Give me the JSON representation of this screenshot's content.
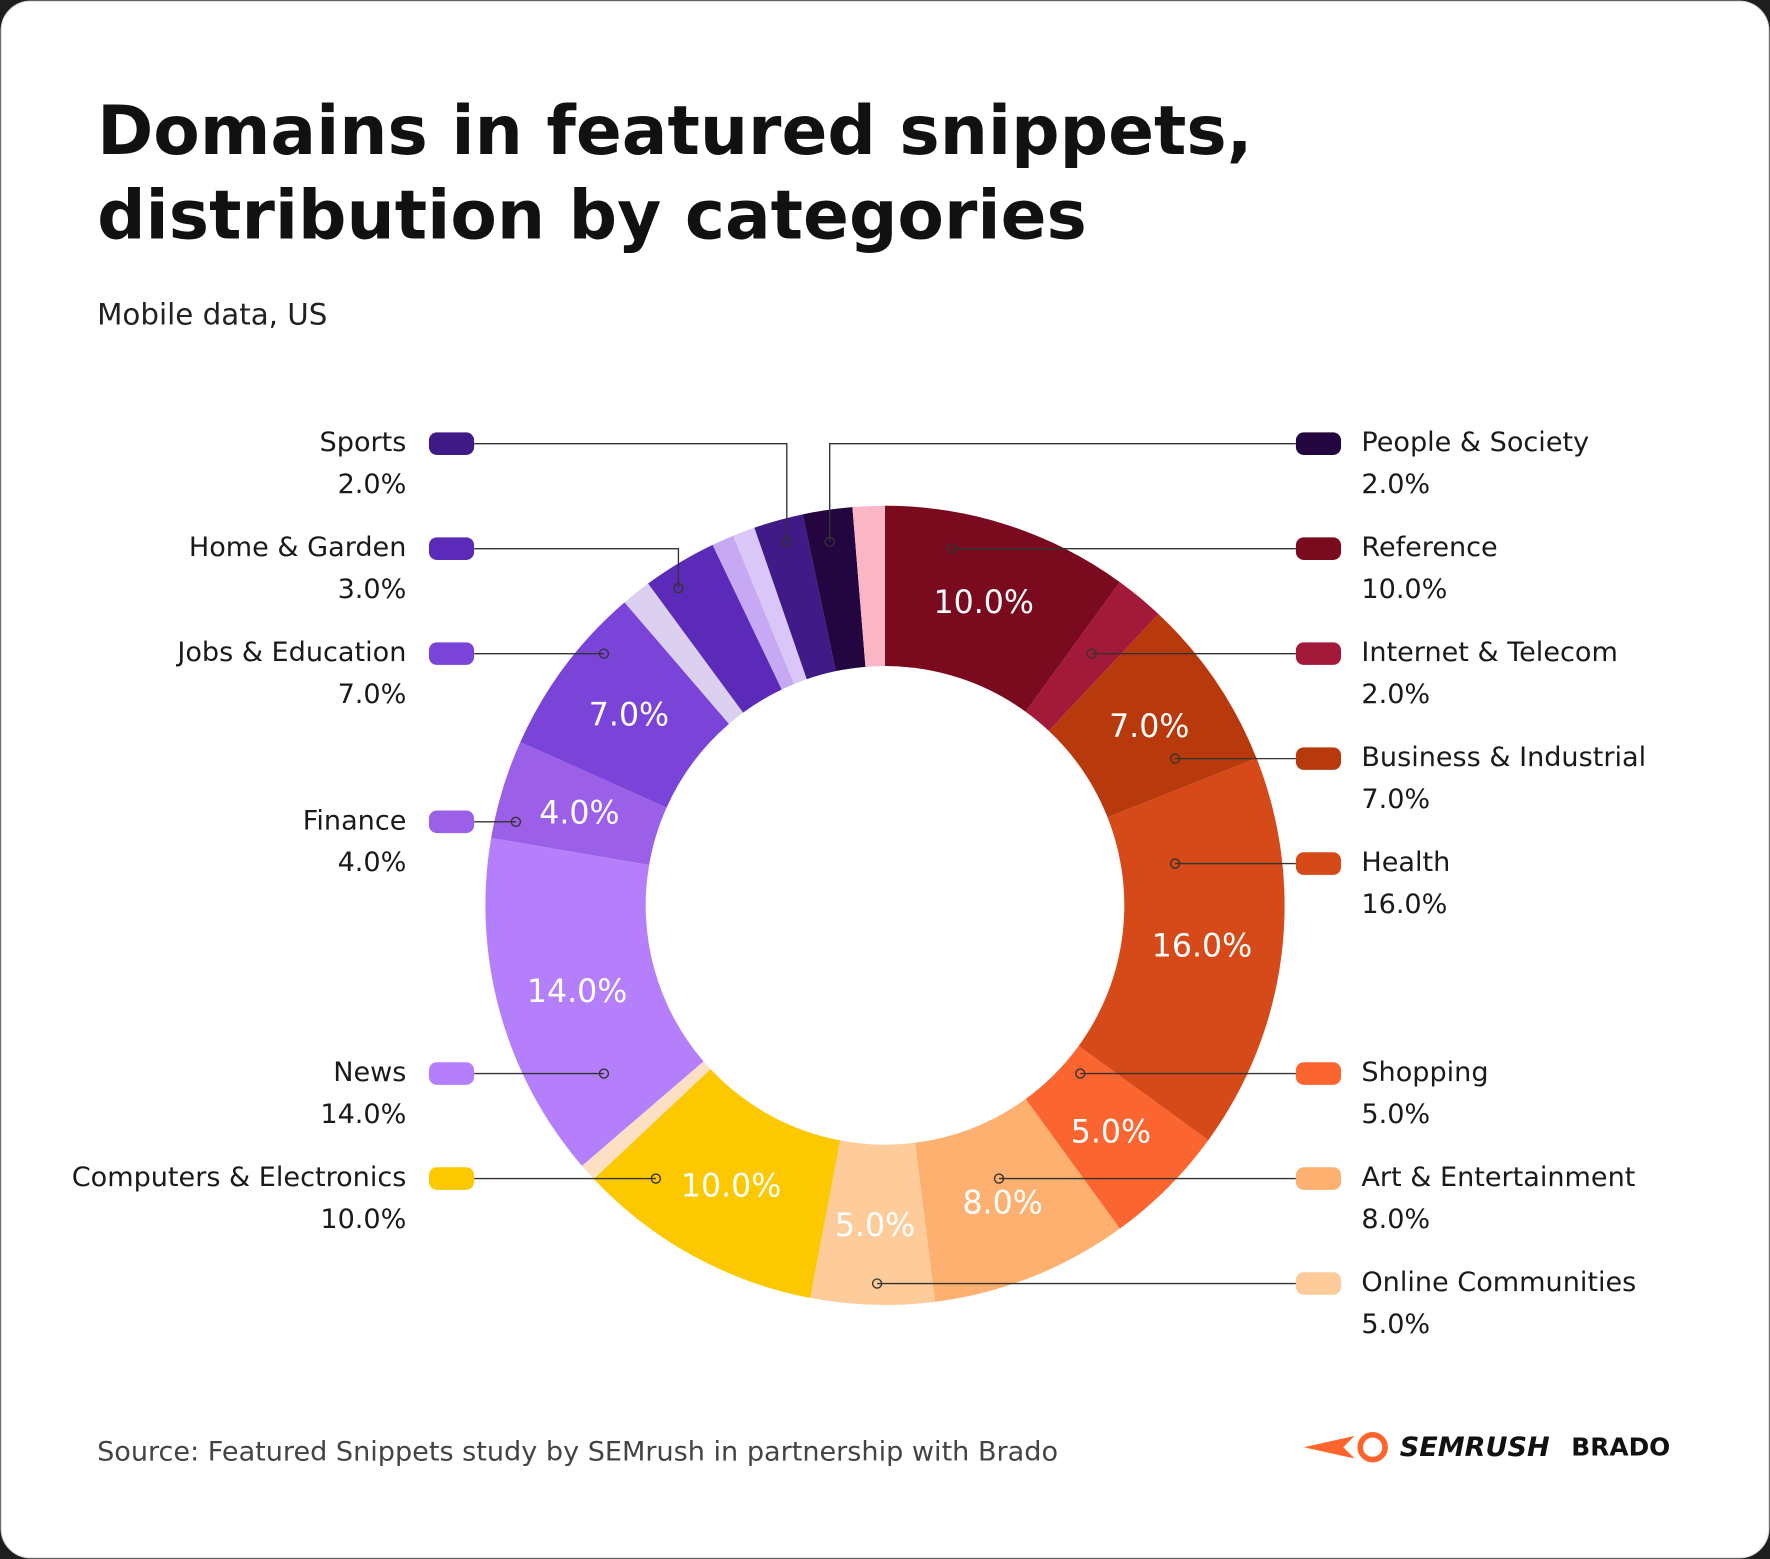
{
  "chart_data": {
    "type": "donut",
    "title": [
      "Domains in featured snippets,",
      "distribution by categories"
    ],
    "subtitle": "Mobile data, US",
    "categories": [
      "Reference",
      "Internet & Telecom",
      "Business & Industrial",
      "Health",
      "Shopping",
      "Art & Entertainment",
      "Online Communities",
      "Computers & Electronics",
      null,
      "News",
      "Finance",
      "Jobs & Education",
      null,
      "Home & Garden",
      null,
      null,
      "Sports",
      "People & Society",
      null
    ],
    "values": [
      10,
      2,
      7,
      16,
      5,
      8,
      5,
      10,
      0.7,
      14,
      4,
      7,
      1.2,
      3,
      0.9,
      0.9,
      2,
      2,
      1.3
    ],
    "value_labels": [
      "10.0%",
      "2.0%",
      "7.0%",
      "16.0%",
      "5.0%",
      "8.0%",
      "5.0%",
      "10.0%",
      null,
      "14.0%",
      "4.0%",
      "7.0%",
      null,
      "3.0%",
      null,
      null,
      "2.0%",
      "2.0%",
      null
    ],
    "colors": [
      "#7a0a1e",
      "#a3193a",
      "#b83a0c",
      "#d54a18",
      "#fb6530",
      "#fdb070",
      "#fdcc9a",
      "#fcc800",
      "#fde0c4",
      "#b57ffb",
      "#9c5fe8",
      "#7b44d8",
      "#dcd0f0",
      "#5b2ab8",
      "#c6a9f2",
      "#dac7f7",
      "#401a86",
      "#23063f",
      "#fbb6c6"
    ],
    "source": "Source: Featured Snippets study by SEMrush in partnership with Brado",
    "logos": [
      "SEMRUSH",
      "BRADO"
    ]
  }
}
